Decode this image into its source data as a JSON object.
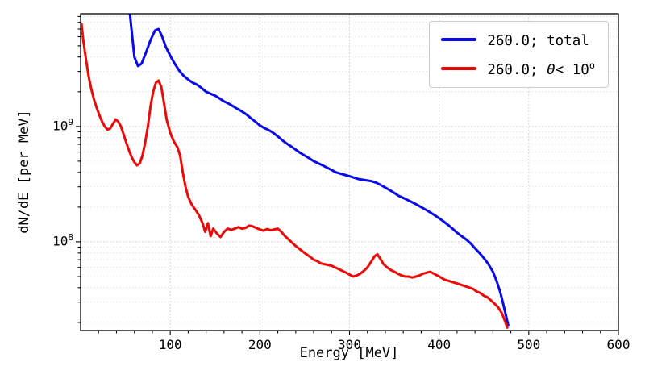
{
  "chart_data": {
    "type": "line",
    "title": "",
    "xlabel": "Energy [MeV]",
    "ylabel": "dN/dE [per MeV]",
    "xlim": [
      0,
      600
    ],
    "ylim": [
      17000000.0,
      9500000000.0
    ],
    "x_ticks": [
      100,
      200,
      300,
      400,
      500,
      600
    ],
    "y_major_ticks_exp": [
      8,
      9
    ],
    "y_scale": "log",
    "grid": true,
    "legend_position": "upper right",
    "legend": [
      {
        "pre": "260.0; total",
        "theta": "",
        "rest": "",
        "sup": ""
      },
      {
        "pre": "260.0; ",
        "theta": "θ",
        "rest": "< 10",
        "sup": "o"
      }
    ],
    "series": [
      {
        "name": "260.0; total",
        "color": "#0909ee",
        "points": [
          [
            55,
            9500000000.0
          ],
          [
            60,
            4000000000.0
          ],
          [
            64,
            3350000000.0
          ],
          [
            68,
            3500000000.0
          ],
          [
            73,
            4400000000.0
          ],
          [
            78,
            5600000000.0
          ],
          [
            83,
            6800000000.0
          ],
          [
            87,
            7000000000.0
          ],
          [
            91,
            6000000000.0
          ],
          [
            95,
            4900000000.0
          ],
          [
            100,
            4100000000.0
          ],
          [
            105,
            3500000000.0
          ],
          [
            110,
            3050000000.0
          ],
          [
            115,
            2750000000.0
          ],
          [
            120,
            2550000000.0
          ],
          [
            125,
            2400000000.0
          ],
          [
            130,
            2300000000.0
          ],
          [
            135,
            2150000000.0
          ],
          [
            140,
            2000000000.0
          ],
          [
            145,
            1920000000.0
          ],
          [
            150,
            1850000000.0
          ],
          [
            155,
            1750000000.0
          ],
          [
            160,
            1650000000.0
          ],
          [
            165,
            1580000000.0
          ],
          [
            170,
            1500000000.0
          ],
          [
            175,
            1420000000.0
          ],
          [
            180,
            1350000000.0
          ],
          [
            185,
            1270000000.0
          ],
          [
            190,
            1180000000.0
          ],
          [
            195,
            1100000000.0
          ],
          [
            200,
            1020000000.0
          ],
          [
            205,
            970000000.0
          ],
          [
            210,
            930000000.0
          ],
          [
            215,
            880000000.0
          ],
          [
            220,
            820000000.0
          ],
          [
            225,
            760000000.0
          ],
          [
            230,
            710000000.0
          ],
          [
            235,
            670000000.0
          ],
          [
            240,
            630000000.0
          ],
          [
            245,
            590000000.0
          ],
          [
            250,
            560000000.0
          ],
          [
            255,
            530000000.0
          ],
          [
            260,
            500000000.0
          ],
          [
            265,
            480000000.0
          ],
          [
            270,
            460000000.0
          ],
          [
            275,
            440000000.0
          ],
          [
            280,
            420000000.0
          ],
          [
            285,
            400000000.0
          ],
          [
            290,
            390000000.0
          ],
          [
            295,
            380000000.0
          ],
          [
            300,
            370000000.0
          ],
          [
            305,
            360000000.0
          ],
          [
            310,
            350000000.0
          ],
          [
            315,
            345000000.0
          ],
          [
            320,
            340000000.0
          ],
          [
            325,
            335000000.0
          ],
          [
            330,
            325000000.0
          ],
          [
            335,
            310000000.0
          ],
          [
            340,
            295000000.0
          ],
          [
            345,
            280000000.0
          ],
          [
            350,
            265000000.0
          ],
          [
            355,
            250000000.0
          ],
          [
            360,
            240000000.0
          ],
          [
            365,
            230000000.0
          ],
          [
            370,
            220000000.0
          ],
          [
            375,
            210000000.0
          ],
          [
            380,
            200000000.0
          ],
          [
            385,
            190000000.0
          ],
          [
            390,
            180000000.0
          ],
          [
            395,
            170000000.0
          ],
          [
            400,
            160000000.0
          ],
          [
            405,
            150000000.0
          ],
          [
            410,
            140000000.0
          ],
          [
            415,
            130000000.0
          ],
          [
            420,
            120000000.0
          ],
          [
            425,
            112000000.0
          ],
          [
            430,
            105000000.0
          ],
          [
            435,
            97000000.0
          ],
          [
            440,
            88000000.0
          ],
          [
            445,
            80000000.0
          ],
          [
            450,
            72000000.0
          ],
          [
            455,
            64000000.0
          ],
          [
            460,
            55000000.0
          ],
          [
            464,
            46000000.0
          ],
          [
            468,
            37000000.0
          ],
          [
            471,
            30000000.0
          ],
          [
            474,
            24000000.0
          ],
          [
            477,
            19000000.0
          ]
        ]
      },
      {
        "name": "260.0; θ< 10^o",
        "color": "#ee0909",
        "points": [
          [
            1,
            7800000000.0
          ],
          [
            3,
            5600000000.0
          ],
          [
            6,
            3800000000.0
          ],
          [
            9,
            2700000000.0
          ],
          [
            12,
            2100000000.0
          ],
          [
            15,
            1700000000.0
          ],
          [
            18,
            1450000000.0
          ],
          [
            21,
            1250000000.0
          ],
          [
            24,
            1100000000.0
          ],
          [
            27,
            1000000000.0
          ],
          [
            30,
            940000000.0
          ],
          [
            33,
            960000000.0
          ],
          [
            36,
            1050000000.0
          ],
          [
            39,
            1150000000.0
          ],
          [
            42,
            1100000000.0
          ],
          [
            45,
            1000000000.0
          ],
          [
            48,
            850000000.0
          ],
          [
            51,
            720000000.0
          ],
          [
            54,
            620000000.0
          ],
          [
            57,
            540000000.0
          ],
          [
            60,
            490000000.0
          ],
          [
            63,
            460000000.0
          ],
          [
            66,
            480000000.0
          ],
          [
            69,
            560000000.0
          ],
          [
            72,
            720000000.0
          ],
          [
            75,
            1000000000.0
          ],
          [
            78,
            1500000000.0
          ],
          [
            81,
            2000000000.0
          ],
          [
            84,
            2400000000.0
          ],
          [
            87,
            2500000000.0
          ],
          [
            90,
            2200000000.0
          ],
          [
            93,
            1600000000.0
          ],
          [
            96,
            1150000000.0
          ],
          [
            100,
            880000000.0
          ],
          [
            104,
            740000000.0
          ],
          [
            108,
            660000000.0
          ],
          [
            111,
            560000000.0
          ],
          [
            114,
            400000000.0
          ],
          [
            117,
            300000000.0
          ],
          [
            120,
            245000000.0
          ],
          [
            124,
            210000000.0
          ],
          [
            128,
            190000000.0
          ],
          [
            132,
            170000000.0
          ],
          [
            136,
            145000000.0
          ],
          [
            139,
            122000000.0
          ],
          [
            142,
            145000000.0
          ],
          [
            145,
            112000000.0
          ],
          [
            148,
            130000000.0
          ],
          [
            152,
            118000000.0
          ],
          [
            156,
            110000000.0
          ],
          [
            160,
            122000000.0
          ],
          [
            164,
            130000000.0
          ],
          [
            168,
            127000000.0
          ],
          [
            172,
            130000000.0
          ],
          [
            176,
            134000000.0
          ],
          [
            180,
            130000000.0
          ],
          [
            184,
            132000000.0
          ],
          [
            188,
            138000000.0
          ],
          [
            192,
            136000000.0
          ],
          [
            196,
            132000000.0
          ],
          [
            200,
            128000000.0
          ],
          [
            204,
            125000000.0
          ],
          [
            208,
            129000000.0
          ],
          [
            212,
            126000000.0
          ],
          [
            216,
            128000000.0
          ],
          [
            220,
            130000000.0
          ],
          [
            224,
            122000000.0
          ],
          [
            228,
            112000000.0
          ],
          [
            232,
            105000000.0
          ],
          [
            236,
            98000000.0
          ],
          [
            240,
            92000000.0
          ],
          [
            244,
            87000000.0
          ],
          [
            248,
            82000000.0
          ],
          [
            252,
            78000000.0
          ],
          [
            256,
            74000000.0
          ],
          [
            260,
            70000000.0
          ],
          [
            264,
            68000000.0
          ],
          [
            268,
            65000000.0
          ],
          [
            272,
            64000000.0
          ],
          [
            276,
            63000000.0
          ],
          [
            280,
            62000000.0
          ],
          [
            284,
            60000000.0
          ],
          [
            288,
            58000000.0
          ],
          [
            292,
            56000000.0
          ],
          [
            296,
            54000000.0
          ],
          [
            300,
            52000000.0
          ],
          [
            304,
            50000000.0
          ],
          [
            308,
            51000000.0
          ],
          [
            312,
            53000000.0
          ],
          [
            316,
            56000000.0
          ],
          [
            320,
            60000000.0
          ],
          [
            324,
            67000000.0
          ],
          [
            328,
            75000000.0
          ],
          [
            331,
            78000000.0
          ],
          [
            334,
            72000000.0
          ],
          [
            338,
            64000000.0
          ],
          [
            342,
            60000000.0
          ],
          [
            346,
            57000000.0
          ],
          [
            350,
            55000000.0
          ],
          [
            354,
            53000000.0
          ],
          [
            358,
            51000000.0
          ],
          [
            362,
            50000000.0
          ],
          [
            366,
            50000000.0
          ],
          [
            370,
            49000000.0
          ],
          [
            374,
            50000000.0
          ],
          [
            378,
            51000000.0
          ],
          [
            382,
            53000000.0
          ],
          [
            386,
            54000000.0
          ],
          [
            390,
            55000000.0
          ],
          [
            394,
            53000000.0
          ],
          [
            398,
            51000000.0
          ],
          [
            402,
            49000000.0
          ],
          [
            406,
            47000000.0
          ],
          [
            410,
            46000000.0
          ],
          [
            414,
            45000000.0
          ],
          [
            418,
            44000000.0
          ],
          [
            422,
            43000000.0
          ],
          [
            426,
            42000000.0
          ],
          [
            430,
            41000000.0
          ],
          [
            434,
            40000000.0
          ],
          [
            438,
            39000000.0
          ],
          [
            442,
            37000000.0
          ],
          [
            446,
            36000000.0
          ],
          [
            450,
            34000000.0
          ],
          [
            454,
            33000000.0
          ],
          [
            458,
            31000000.0
          ],
          [
            462,
            29000000.0
          ],
          [
            466,
            27000000.0
          ],
          [
            470,
            24000000.0
          ],
          [
            473,
            21000000.0
          ],
          [
            476,
            18000000.0
          ]
        ]
      }
    ]
  }
}
